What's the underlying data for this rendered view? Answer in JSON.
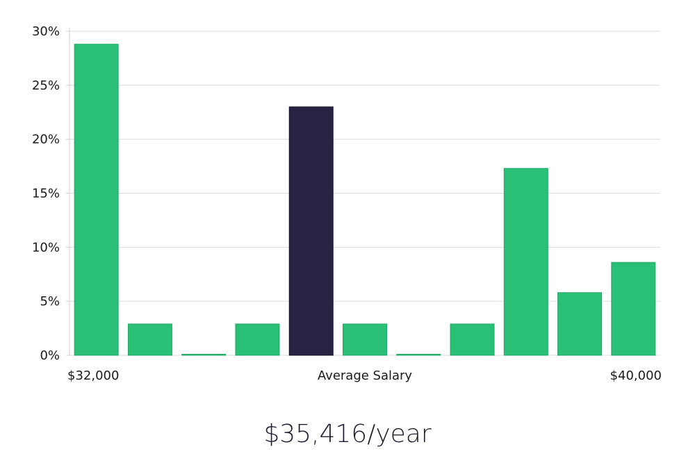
{
  "chart_data": {
    "type": "bar",
    "title": "",
    "xlabel": "Average Salary",
    "ylabel": "",
    "x_min_label": "$32,000",
    "x_max_label": "$40,000",
    "ylim": [
      0,
      30
    ],
    "yticks": [
      0,
      5,
      10,
      15,
      20,
      25,
      30
    ],
    "ytick_labels": [
      "0%",
      "5%",
      "10%",
      "15%",
      "20%",
      "25%",
      "30%"
    ],
    "values": [
      28.8,
      2.9,
      0.1,
      2.9,
      23.0,
      2.9,
      0.1,
      2.9,
      17.3,
      5.8,
      8.6
    ],
    "highlight_index": 4,
    "bar_color": "#2abf77",
    "highlight_color": "#262343",
    "grid": true
  },
  "summary": {
    "average_salary": "$35,416/year"
  }
}
